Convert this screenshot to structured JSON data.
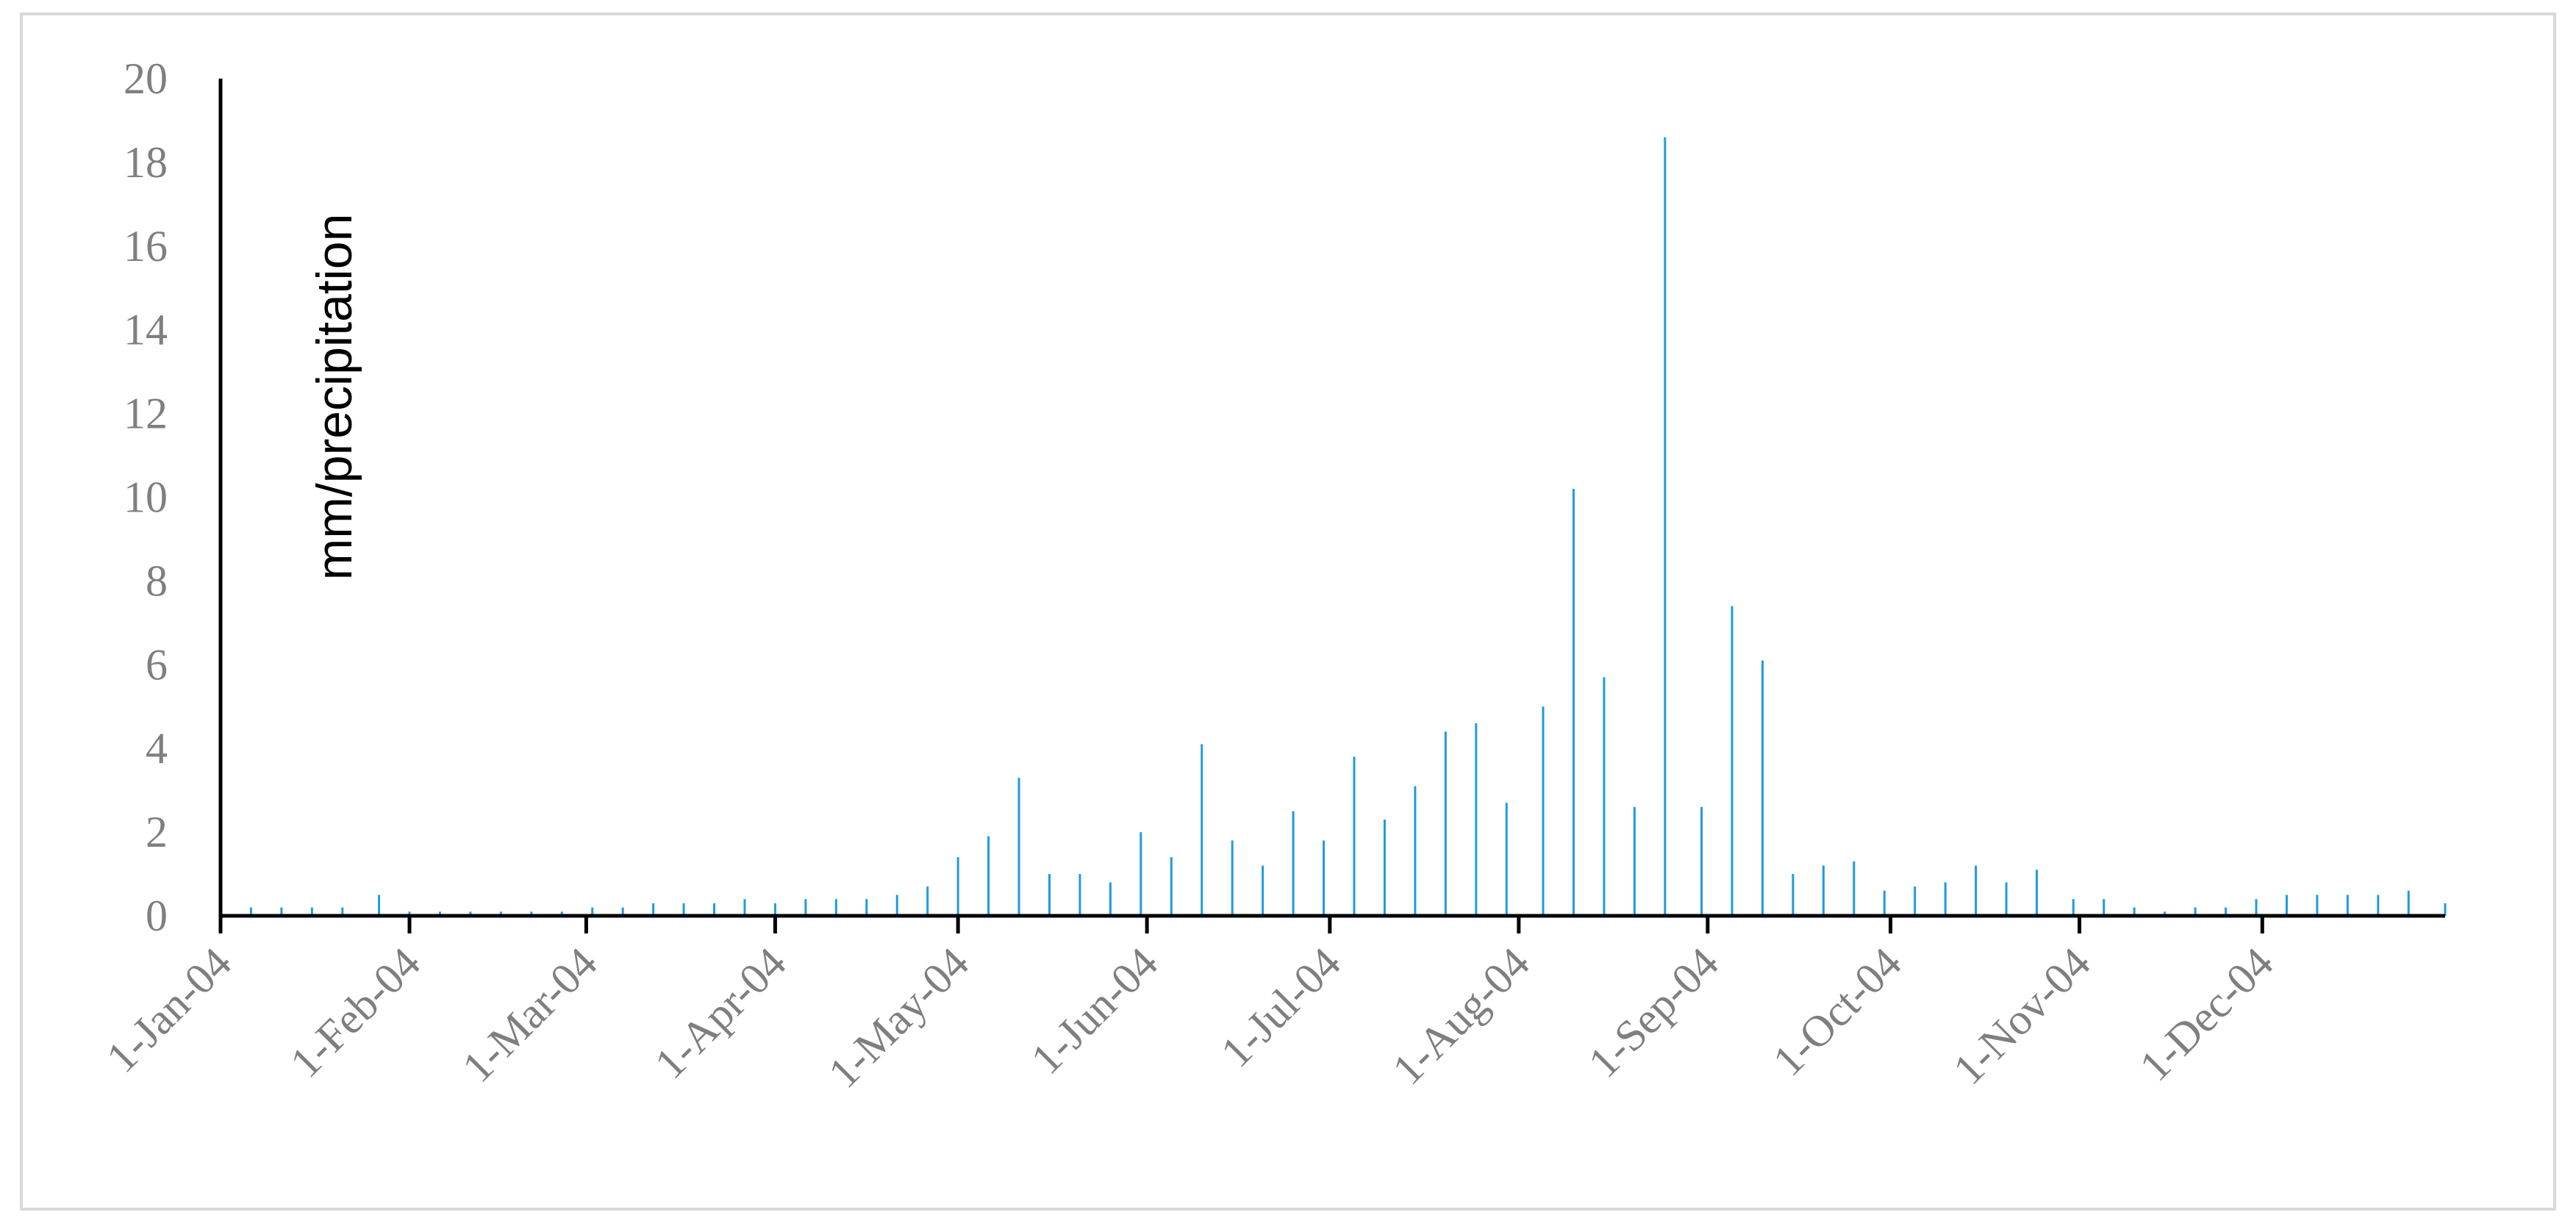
{
  "chart_data": {
    "type": "bar",
    "title": "",
    "xlabel": "",
    "ylabel": "mm/precipitation",
    "ylim": [
      0,
      20
    ],
    "xlim": [
      "2004-01-01",
      "2004-12-31"
    ],
    "yticks": [
      0,
      2,
      4,
      6,
      8,
      10,
      12,
      14,
      16,
      18,
      20
    ],
    "xticks": [
      "1-Jan-04",
      "1-Feb-04",
      "1-Mar-04",
      "1-Apr-04",
      "1-May-04",
      "1-Jun-04",
      "1-Jul-04",
      "1-Aug-04",
      "1-Sep-04",
      "1-Oct-04",
      "1-Nov-04",
      "1-Dec-04"
    ],
    "xtick_dates": [
      "2004-01-01",
      "2004-02-01",
      "2004-03-01",
      "2004-04-01",
      "2004-05-01",
      "2004-06-01",
      "2004-07-01",
      "2004-08-01",
      "2004-09-01",
      "2004-10-01",
      "2004-11-01",
      "2004-12-01"
    ],
    "grid": false,
    "legend": "none",
    "series": [
      {
        "color": "#1f9bde",
        "x": [
          "2004-01-01",
          "2004-01-06",
          "2004-01-11",
          "2004-01-16",
          "2004-01-21",
          "2004-01-27",
          "2004-02-01",
          "2004-02-06",
          "2004-02-11",
          "2004-02-16",
          "2004-02-21",
          "2004-02-26",
          "2004-03-02",
          "2004-03-07",
          "2004-03-12",
          "2004-03-17",
          "2004-03-22",
          "2004-03-27",
          "2004-04-01",
          "2004-04-06",
          "2004-04-11",
          "2004-04-16",
          "2004-04-21",
          "2004-04-26",
          "2004-05-01",
          "2004-05-06",
          "2004-05-11",
          "2004-05-16",
          "2004-05-21",
          "2004-05-26",
          "2004-05-31",
          "2004-06-05",
          "2004-06-10",
          "2004-06-15",
          "2004-06-20",
          "2004-06-25",
          "2004-06-30",
          "2004-07-05",
          "2004-07-10",
          "2004-07-15",
          "2004-07-20",
          "2004-07-25",
          "2004-07-30",
          "2004-08-05",
          "2004-08-10",
          "2004-08-15",
          "2004-08-20",
          "2004-08-25",
          "2004-08-31",
          "2004-09-05",
          "2004-09-10",
          "2004-09-15",
          "2004-09-20",
          "2004-09-25",
          "2004-09-30",
          "2004-10-05",
          "2004-10-10",
          "2004-10-15",
          "2004-10-20",
          "2004-10-25",
          "2004-10-31",
          "2004-11-05",
          "2004-11-10",
          "2004-11-15",
          "2004-11-20",
          "2004-11-25",
          "2004-11-30",
          "2004-12-05",
          "2004-12-10",
          "2004-12-15",
          "2004-12-20",
          "2004-12-25",
          "2004-12-31"
        ],
        "values": [
          0.2,
          0.2,
          0.2,
          0.2,
          0.2,
          0.5,
          0.1,
          0.1,
          0.1,
          0.1,
          0.1,
          0.1,
          0.2,
          0.2,
          0.3,
          0.3,
          0.3,
          0.4,
          0.3,
          0.4,
          0.4,
          0.4,
          0.5,
          0.7,
          1.4,
          1.9,
          3.3,
          1.0,
          1.0,
          0.8,
          2.0,
          1.4,
          4.1,
          1.8,
          1.2,
          2.5,
          1.8,
          3.8,
          2.3,
          3.1,
          4.4,
          4.6,
          2.7,
          5.0,
          10.2,
          5.7,
          2.6,
          18.6,
          2.6,
          7.4,
          6.1,
          1.0,
          1.2,
          1.3,
          0.6,
          0.7,
          0.8,
          1.2,
          0.8,
          1.1,
          0.4,
          0.4,
          0.2,
          0.1,
          0.2,
          0.2,
          0.4,
          0.5,
          0.5,
          0.5,
          0.5,
          0.6,
          0.3
        ]
      }
    ]
  }
}
